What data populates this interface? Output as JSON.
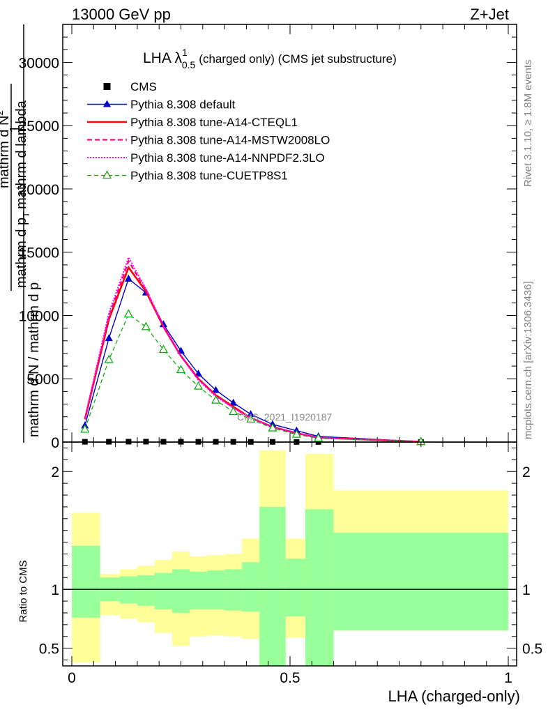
{
  "header": {
    "left": "13000 GeV pp",
    "right": "Z+Jet"
  },
  "side_text": {
    "rivet": "Rivet 3.1.10, ≥ 1.8M events",
    "mcplots": "mcplots.cern.ch [arXiv:1306.3436]"
  },
  "chart_data": [
    {
      "type": "line",
      "title": "LHA λ^1_0.5 (charged only) (CMS jet substructure)",
      "title_main": "LHA λ",
      "title_sup": "1",
      "title_sub": "0.5",
      "title_rest": "(charged only) (CMS jet substructure)",
      "ylabel_parts": [
        "1",
        "mathrm d N / mathrm d p",
        "mathrm d N",
        "mathrm d p",
        "T",
        "mathrm d lambda",
        "2"
      ],
      "watermark": "CMS_2021_I1920187",
      "xlim": [
        0,
        1
      ],
      "ylim": [
        0,
        33000
      ],
      "yticks": [
        {
          "value": 0,
          "label": "0"
        },
        {
          "value": 5000,
          "label": "5000"
        },
        {
          "value": 10000,
          "label": "10000"
        },
        {
          "value": 15000,
          "label": "15000"
        },
        {
          "value": 20000,
          "label": "20000"
        },
        {
          "value": 25000,
          "label": "25000"
        },
        {
          "value": 30000,
          "label": "30000"
        }
      ],
      "legend_position": "top-left",
      "x": [
        0.03,
        0.085,
        0.13,
        0.17,
        0.21,
        0.25,
        0.29,
        0.33,
        0.37,
        0.41,
        0.46,
        0.515,
        0.565,
        0.8
      ],
      "series": [
        {
          "name": "CMS",
          "color": "#000000",
          "style": "points",
          "marker": "square",
          "values": [
            20,
            25,
            30,
            30,
            25,
            25,
            20,
            20,
            20,
            15,
            15,
            10,
            10,
            5
          ]
        },
        {
          "name": "Pythia 8.308 default",
          "color": "#0000cc",
          "style": "solid",
          "marker": "triangle-filled",
          "values": [
            1300,
            8200,
            12900,
            11800,
            9300,
            7200,
            5400,
            4100,
            3100,
            2200,
            1400,
            900,
            450,
            30
          ]
        },
        {
          "name": "Pythia 8.308 tune-A14-CTEQL1",
          "color": "#ff0000",
          "style": "solid-thick",
          "marker": "none",
          "values": [
            1800,
            9700,
            13800,
            11900,
            9100,
            6800,
            5000,
            3700,
            2800,
            1900,
            1200,
            700,
            350,
            20
          ]
        },
        {
          "name": "Pythia 8.308 tune-A14-MSTW2008LO",
          "color": "#ff0080",
          "style": "dashed",
          "marker": "none",
          "values": [
            1800,
            9900,
            14300,
            12000,
            9100,
            6800,
            5000,
            3700,
            2700,
            1900,
            1200,
            700,
            350,
            20
          ]
        },
        {
          "name": "Pythia 8.308 tune-A14-NNPDF2.3LO",
          "color": "#ff00ff",
          "style": "dotted",
          "marker": "none",
          "values": [
            1900,
            10200,
            14600,
            12100,
            9200,
            6800,
            4900,
            3600,
            2700,
            1900,
            1200,
            700,
            350,
            20
          ]
        },
        {
          "name": "Pythia 8.308 tune-CUETP8S1",
          "color": "#00aa00",
          "style": "dashed-thin",
          "marker": "triangle-open",
          "values": [
            1000,
            6500,
            10100,
            9100,
            7300,
            5700,
            4400,
            3300,
            2400,
            1800,
            1100,
            600,
            300,
            15
          ]
        }
      ]
    },
    {
      "type": "area",
      "ylabel": "Ratio to CMS",
      "xlabel": "LHA (charged-only)",
      "xlim": [
        0,
        1
      ],
      "ylim": [
        0.35,
        2.25
      ],
      "xticks": [
        {
          "value": 0,
          "label": "0"
        },
        {
          "value": 0.5,
          "label": "0.5"
        },
        {
          "value": 1,
          "label": "1"
        }
      ],
      "yticks": [
        {
          "value": 0.5,
          "label": "0.5"
        },
        {
          "value": 1,
          "label": "1"
        },
        {
          "value": 2,
          "label": "2"
        }
      ],
      "band_colors": {
        "total": "#ffff99",
        "stat": "#99ff99"
      },
      "bins": [
        {
          "lo": 0.0,
          "hi": 0.065,
          "y_lo": 0.38,
          "y_hi": 1.65,
          "g_lo": 0.76,
          "g_hi": 1.37
        },
        {
          "lo": 0.065,
          "hi": 0.11,
          "y_lo": 0.78,
          "y_hi": 1.13,
          "g_lo": 0.9,
          "g_hi": 1.1
        },
        {
          "lo": 0.11,
          "hi": 0.15,
          "y_lo": 0.75,
          "y_hi": 1.17,
          "g_lo": 0.88,
          "g_hi": 1.11
        },
        {
          "lo": 0.15,
          "hi": 0.19,
          "y_lo": 0.72,
          "y_hi": 1.2,
          "g_lo": 0.86,
          "g_hi": 1.12
        },
        {
          "lo": 0.19,
          "hi": 0.23,
          "y_lo": 0.63,
          "y_hi": 1.25,
          "g_lo": 0.83,
          "g_hi": 1.14
        },
        {
          "lo": 0.23,
          "hi": 0.27,
          "y_lo": 0.52,
          "y_hi": 1.32,
          "g_lo": 0.8,
          "g_hi": 1.17
        },
        {
          "lo": 0.27,
          "hi": 0.31,
          "y_lo": 0.6,
          "y_hi": 1.28,
          "g_lo": 0.83,
          "g_hi": 1.15
        },
        {
          "lo": 0.31,
          "hi": 0.35,
          "y_lo": 0.61,
          "y_hi": 1.29,
          "g_lo": 0.83,
          "g_hi": 1.16
        },
        {
          "lo": 0.35,
          "hi": 0.39,
          "y_lo": 0.6,
          "y_hi": 1.3,
          "g_lo": 0.82,
          "g_hi": 1.17
        },
        {
          "lo": 0.39,
          "hi": 0.43,
          "y_lo": 0.58,
          "y_hi": 1.43,
          "g_lo": 0.81,
          "g_hi": 1.23
        },
        {
          "lo": 0.43,
          "hi": 0.49,
          "y_lo": 0.35,
          "y_hi": 2.18,
          "g_lo": 0.35,
          "g_hi": 1.7
        },
        {
          "lo": 0.49,
          "hi": 0.535,
          "y_lo": 0.59,
          "y_hi": 1.43,
          "g_lo": 0.77,
          "g_hi": 1.26
        },
        {
          "lo": 0.535,
          "hi": 0.6,
          "y_lo": 0.35,
          "y_hi": 2.15,
          "g_lo": 0.35,
          "g_hi": 1.68
        },
        {
          "lo": 0.6,
          "hi": 1.0,
          "y_lo": 0.65,
          "y_hi": 1.84,
          "g_lo": 0.65,
          "g_hi": 1.48
        }
      ]
    }
  ]
}
